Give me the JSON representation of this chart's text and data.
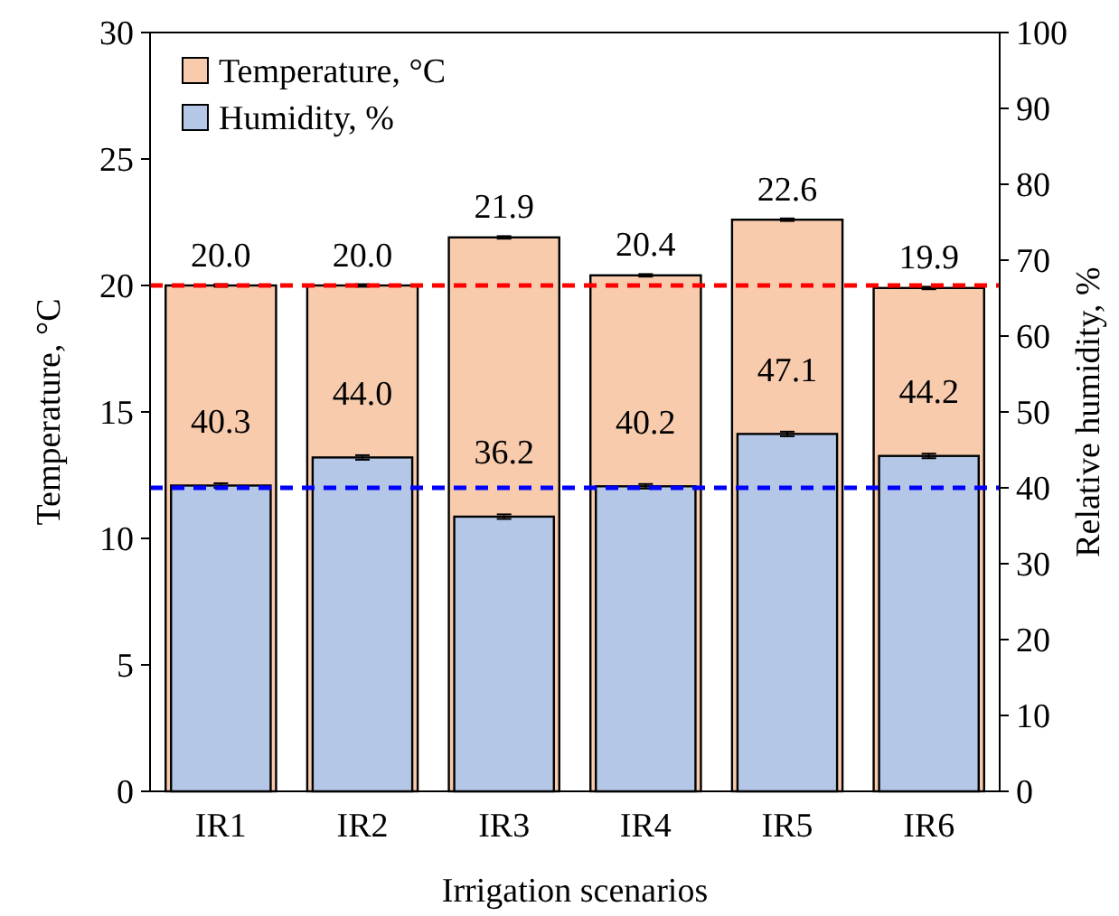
{
  "chart_data": {
    "type": "bar",
    "xlabel": "Irrigation scenarios",
    "ylabel": "Temperature, °C",
    "y2label": "Relative humidity, %",
    "categories": [
      "IR1",
      "IR2",
      "IR3",
      "IR4",
      "IR5",
      "IR6"
    ],
    "series": [
      {
        "name": "Temperature, °C",
        "color": "#f8cbad",
        "values": [
          20.0,
          20.0,
          21.9,
          20.4,
          22.6,
          19.9
        ],
        "errors": [
          0.05,
          0.05,
          0.05,
          0.05,
          0.05,
          0.05
        ],
        "value_labels": [
          "20.0",
          "20.0",
          "21.9",
          "20.4",
          "22.6",
          "19.9"
        ]
      },
      {
        "name": "Humidity, %",
        "color": "#b4c7e7",
        "axis": "y2",
        "values": [
          40.3,
          44.0,
          36.2,
          40.2,
          47.1,
          44.2
        ],
        "errors": [
          0.3,
          0.3,
          0.3,
          0.3,
          0.3,
          0.3
        ],
        "value_labels": [
          "40.3",
          "44.0",
          "36.2",
          "40.2",
          "47.1",
          "44.2"
        ]
      }
    ],
    "ylim": [
      0,
      30
    ],
    "yticks": [
      0,
      5,
      10,
      15,
      20,
      25,
      30
    ],
    "y2lim": [
      0,
      100
    ],
    "y2ticks": [
      0,
      10,
      20,
      30,
      40,
      50,
      60,
      70,
      80,
      90,
      100
    ],
    "ref_lines": [
      {
        "axis": "y",
        "value": 20,
        "color": "#ff0000",
        "line_style": "dashed"
      },
      {
        "axis": "y2",
        "value": 40,
        "color": "#0000ff",
        "line_style": "dashed"
      }
    ],
    "legend": "top left",
    "grid": false
  }
}
